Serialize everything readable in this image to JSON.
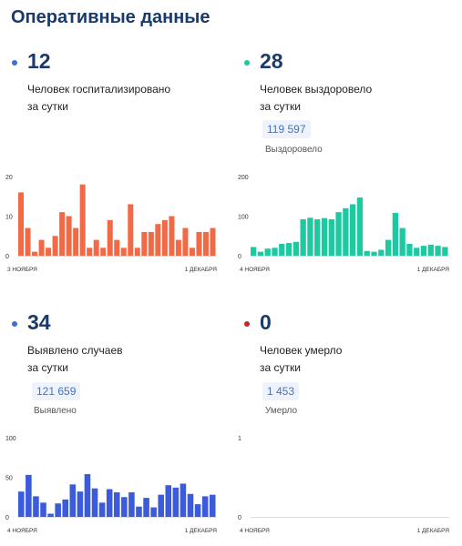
{
  "page_title": "Оперативные данные",
  "panels": [
    {
      "value": "12",
      "desc_line1": "Человек госпитализировано",
      "desc_line2": "за сутки",
      "total": "",
      "total_label": "",
      "dot_color": "#3b6fd6"
    },
    {
      "value": "28",
      "desc_line1": "Человек выздоровело",
      "desc_line2": "за сутки",
      "total": "119 597",
      "total_label": "Выздоровело",
      "dot_color": "#1cc9a0"
    },
    {
      "value": "34",
      "desc_line1": "Выявлено случаев",
      "desc_line2": "за сутки",
      "total": "121 659",
      "total_label": "Выявлено",
      "dot_color": "#3b6fd6"
    },
    {
      "value": "0",
      "desc_line1": "Человек умерло",
      "desc_line2": "за сутки",
      "total": "1 453",
      "total_label": "Умерло",
      "dot_color": "#c62828"
    }
  ],
  "chart_data": [
    {
      "type": "bar",
      "name_hint": "hospitalized",
      "color": "#f26a45",
      "x_start_label": "3 НОЯБРЯ",
      "x_end_label": "1 ДЕКАБРЯ",
      "yticks": [
        0,
        10,
        20
      ],
      "ylim": [
        0,
        20
      ],
      "values": [
        16,
        7,
        1,
        4,
        2,
        5,
        11,
        10,
        7,
        18,
        2,
        4,
        2,
        9,
        4,
        2,
        13,
        2,
        6,
        6,
        8,
        9,
        10,
        4,
        7,
        2,
        6,
        6,
        7
      ]
    },
    {
      "type": "bar",
      "name_hint": "recovered",
      "color": "#1cc9a0",
      "x_start_label": "4 НОЯБРЯ",
      "x_end_label": "1 ДЕКАБРЯ",
      "yticks": [
        0,
        100,
        200
      ],
      "ylim": [
        0,
        200
      ],
      "values": [
        22,
        10,
        18,
        20,
        30,
        32,
        35,
        92,
        96,
        92,
        95,
        92,
        110,
        120,
        130,
        147,
        12,
        10,
        15,
        40,
        108,
        70,
        30,
        20,
        25,
        28,
        25,
        22
      ]
    },
    {
      "type": "bar",
      "name_hint": "detected",
      "color": "#3b5bdb",
      "x_start_label": "4 НОЯБРЯ",
      "x_end_label": "1 ДЕКАБРЯ",
      "yticks": [
        0,
        50,
        100
      ],
      "ylim": [
        0,
        100
      ],
      "values": [
        32,
        53,
        26,
        18,
        4,
        17,
        22,
        41,
        32,
        54,
        36,
        18,
        35,
        31,
        25,
        31,
        13,
        24,
        12,
        28,
        40,
        37,
        42,
        29,
        16,
        26,
        28
      ]
    },
    {
      "type": "bar",
      "name_hint": "deaths",
      "color": "#c62828",
      "x_start_label": "4 НОЯБРЯ",
      "x_end_label": "1 ДЕКАБРЯ",
      "yticks": [
        0,
        1
      ],
      "ylim": [
        0,
        1
      ],
      "values": []
    }
  ]
}
